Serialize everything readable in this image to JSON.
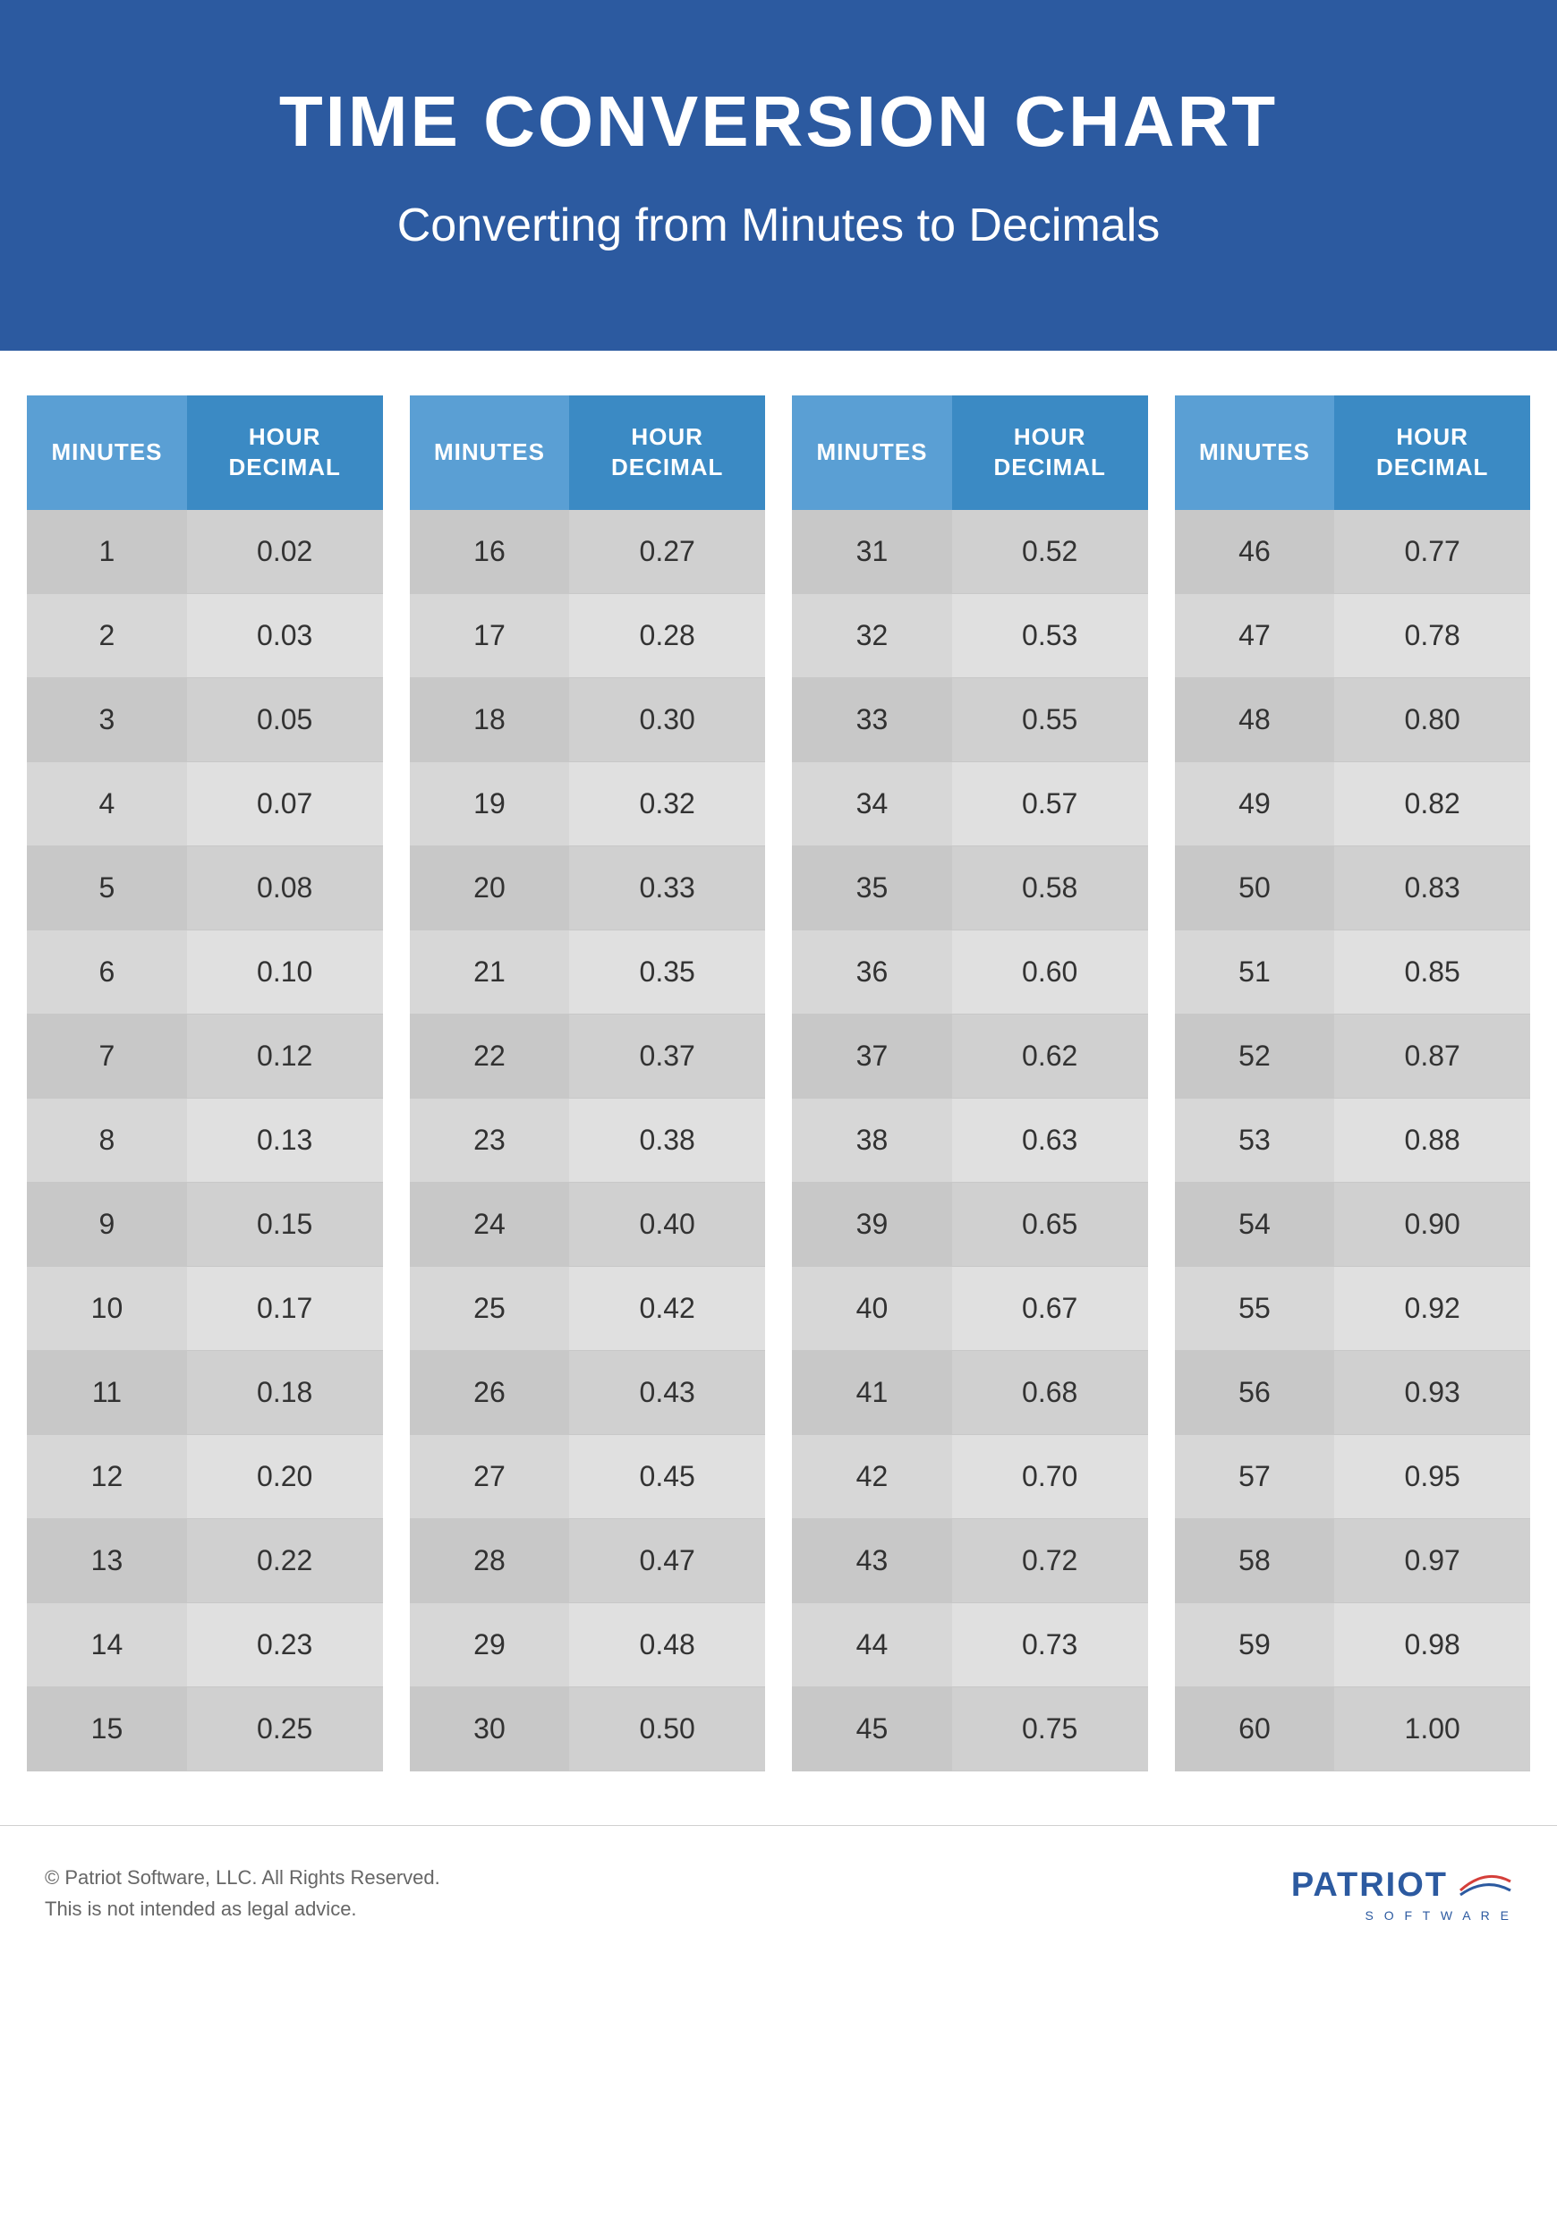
{
  "header": {
    "title": "TIME CONVERSION CHART",
    "subtitle": "Converting from Minutes to Decimals"
  },
  "columns": {
    "minutes": "MINUTES",
    "decimal": "HOUR DECIMAL"
  },
  "tables": [
    [
      {
        "min": "1",
        "dec": "0.02"
      },
      {
        "min": "2",
        "dec": "0.03"
      },
      {
        "min": "3",
        "dec": "0.05"
      },
      {
        "min": "4",
        "dec": "0.07"
      },
      {
        "min": "5",
        "dec": "0.08"
      },
      {
        "min": "6",
        "dec": "0.10"
      },
      {
        "min": "7",
        "dec": "0.12"
      },
      {
        "min": "8",
        "dec": "0.13"
      },
      {
        "min": "9",
        "dec": "0.15"
      },
      {
        "min": "10",
        "dec": "0.17"
      },
      {
        "min": "11",
        "dec": "0.18"
      },
      {
        "min": "12",
        "dec": "0.20"
      },
      {
        "min": "13",
        "dec": "0.22"
      },
      {
        "min": "14",
        "dec": "0.23"
      },
      {
        "min": "15",
        "dec": "0.25"
      }
    ],
    [
      {
        "min": "16",
        "dec": "0.27"
      },
      {
        "min": "17",
        "dec": "0.28"
      },
      {
        "min": "18",
        "dec": "0.30"
      },
      {
        "min": "19",
        "dec": "0.32"
      },
      {
        "min": "20",
        "dec": "0.33"
      },
      {
        "min": "21",
        "dec": "0.35"
      },
      {
        "min": "22",
        "dec": "0.37"
      },
      {
        "min": "23",
        "dec": "0.38"
      },
      {
        "min": "24",
        "dec": "0.40"
      },
      {
        "min": "25",
        "dec": "0.42"
      },
      {
        "min": "26",
        "dec": "0.43"
      },
      {
        "min": "27",
        "dec": "0.45"
      },
      {
        "min": "28",
        "dec": "0.47"
      },
      {
        "min": "29",
        "dec": "0.48"
      },
      {
        "min": "30",
        "dec": "0.50"
      }
    ],
    [
      {
        "min": "31",
        "dec": "0.52"
      },
      {
        "min": "32",
        "dec": "0.53"
      },
      {
        "min": "33",
        "dec": "0.55"
      },
      {
        "min": "34",
        "dec": "0.57"
      },
      {
        "min": "35",
        "dec": "0.58"
      },
      {
        "min": "36",
        "dec": "0.60"
      },
      {
        "min": "37",
        "dec": "0.62"
      },
      {
        "min": "38",
        "dec": "0.63"
      },
      {
        "min": "39",
        "dec": "0.65"
      },
      {
        "min": "40",
        "dec": "0.67"
      },
      {
        "min": "41",
        "dec": "0.68"
      },
      {
        "min": "42",
        "dec": "0.70"
      },
      {
        "min": "43",
        "dec": "0.72"
      },
      {
        "min": "44",
        "dec": "0.73"
      },
      {
        "min": "45",
        "dec": "0.75"
      }
    ],
    [
      {
        "min": "46",
        "dec": "0.77"
      },
      {
        "min": "47",
        "dec": "0.78"
      },
      {
        "min": "48",
        "dec": "0.80"
      },
      {
        "min": "49",
        "dec": "0.82"
      },
      {
        "min": "50",
        "dec": "0.83"
      },
      {
        "min": "51",
        "dec": "0.85"
      },
      {
        "min": "52",
        "dec": "0.87"
      },
      {
        "min": "53",
        "dec": "0.88"
      },
      {
        "min": "54",
        "dec": "0.90"
      },
      {
        "min": "55",
        "dec": "0.92"
      },
      {
        "min": "56",
        "dec": "0.93"
      },
      {
        "min": "57",
        "dec": "0.95"
      },
      {
        "min": "58",
        "dec": "0.97"
      },
      {
        "min": "59",
        "dec": "0.98"
      },
      {
        "min": "60",
        "dec": "1.00"
      }
    ]
  ],
  "footer": {
    "copyright": "© Patriot Software, LLC. All Rights Reserved.",
    "disclaimer": "This is not intended as legal advice.",
    "logo_main": "PATRIOT",
    "logo_sub": "S O F T W A R E"
  },
  "styling": {
    "header_bg": "#2c5aa0",
    "th_light": "#5a9fd4",
    "th_dark": "#3b8ac4",
    "row_odd": "#d0d0d0",
    "row_even": "#e0e0e0",
    "text_color": "#333333",
    "footer_text": "#666666",
    "logo_color": "#2c5aa0"
  }
}
